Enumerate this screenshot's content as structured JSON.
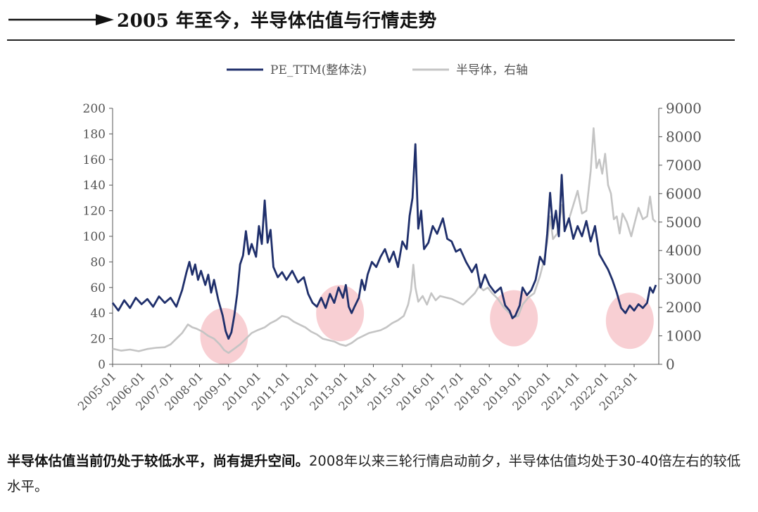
{
  "header": {
    "title": "2005 年至今，半导体估值与行情走势"
  },
  "caption": {
    "bold": "半导体估值当前仍处于较低水平，尚有提升空间。",
    "text": "2008年以来三轮行情启动前夕，半导体估值均处于30-40倍左右的较低水平。"
  },
  "chart_data": {
    "type": "line",
    "title": "2005 年至今，半导体估值与行情走势",
    "legend_position": "top-center",
    "x_tick_labels": [
      "2005-01",
      "2006-01",
      "2007-01",
      "2008-01",
      "2009-01",
      "2010-01",
      "2011-01",
      "2012-01",
      "2013-01",
      "2014-01",
      "2015-01",
      "2016-01",
      "2017-01",
      "2018-01",
      "2019-01",
      "2020-01",
      "2021-01",
      "2022-01",
      "2023-01"
    ],
    "y_left": {
      "label": "",
      "ylim": [
        0,
        200
      ],
      "ticks": [
        0,
        20,
        40,
        60,
        80,
        100,
        120,
        140,
        160,
        180,
        200
      ]
    },
    "y_right": {
      "label": "",
      "ylim": [
        0,
        9000
      ],
      "ticks": [
        0,
        1000,
        2000,
        3000,
        4000,
        5000,
        6000,
        7000,
        8000,
        9000
      ]
    },
    "series": [
      {
        "name": "PE_TTM(整体法)",
        "axis": "left",
        "color": "#1f2f6b",
        "points": [
          [
            2005.0,
            48
          ],
          [
            2005.2,
            42
          ],
          [
            2005.4,
            50
          ],
          [
            2005.6,
            44
          ],
          [
            2005.8,
            52
          ],
          [
            2006.0,
            47
          ],
          [
            2006.2,
            51
          ],
          [
            2006.4,
            45
          ],
          [
            2006.6,
            53
          ],
          [
            2006.8,
            48
          ],
          [
            2007.0,
            52
          ],
          [
            2007.2,
            45
          ],
          [
            2007.4,
            58
          ],
          [
            2007.55,
            72
          ],
          [
            2007.65,
            80
          ],
          [
            2007.75,
            70
          ],
          [
            2007.85,
            78
          ],
          [
            2007.95,
            66
          ],
          [
            2008.05,
            73
          ],
          [
            2008.2,
            62
          ],
          [
            2008.3,
            70
          ],
          [
            2008.4,
            56
          ],
          [
            2008.5,
            66
          ],
          [
            2008.65,
            50
          ],
          [
            2008.8,
            38
          ],
          [
            2008.9,
            26
          ],
          [
            2009.0,
            20
          ],
          [
            2009.1,
            25
          ],
          [
            2009.2,
            38
          ],
          [
            2009.3,
            55
          ],
          [
            2009.4,
            78
          ],
          [
            2009.5,
            85
          ],
          [
            2009.6,
            104
          ],
          [
            2009.7,
            86
          ],
          [
            2009.8,
            94
          ],
          [
            2009.95,
            84
          ],
          [
            2010.05,
            108
          ],
          [
            2010.15,
            94
          ],
          [
            2010.25,
            128
          ],
          [
            2010.35,
            95
          ],
          [
            2010.45,
            105
          ],
          [
            2010.55,
            76
          ],
          [
            2010.7,
            68
          ],
          [
            2010.85,
            72
          ],
          [
            2011.0,
            66
          ],
          [
            2011.2,
            73
          ],
          [
            2011.4,
            64
          ],
          [
            2011.6,
            68
          ],
          [
            2011.75,
            55
          ],
          [
            2011.9,
            48
          ],
          [
            2012.05,
            45
          ],
          [
            2012.2,
            52
          ],
          [
            2012.35,
            44
          ],
          [
            2012.5,
            55
          ],
          [
            2012.65,
            48
          ],
          [
            2012.8,
            60
          ],
          [
            2012.95,
            52
          ],
          [
            2013.05,
            62
          ],
          [
            2013.15,
            45
          ],
          [
            2013.25,
            40
          ],
          [
            2013.35,
            45
          ],
          [
            2013.5,
            52
          ],
          [
            2013.6,
            66
          ],
          [
            2013.7,
            58
          ],
          [
            2013.8,
            70
          ],
          [
            2013.95,
            80
          ],
          [
            2014.1,
            76
          ],
          [
            2014.25,
            84
          ],
          [
            2014.4,
            90
          ],
          [
            2014.55,
            80
          ],
          [
            2014.7,
            88
          ],
          [
            2014.85,
            76
          ],
          [
            2015.0,
            96
          ],
          [
            2015.15,
            90
          ],
          [
            2015.25,
            116
          ],
          [
            2015.35,
            130
          ],
          [
            2015.45,
            172
          ],
          [
            2015.55,
            106
          ],
          [
            2015.65,
            120
          ],
          [
            2015.75,
            90
          ],
          [
            2015.9,
            95
          ],
          [
            2016.05,
            108
          ],
          [
            2016.2,
            102
          ],
          [
            2016.4,
            114
          ],
          [
            2016.55,
            98
          ],
          [
            2016.7,
            96
          ],
          [
            2016.85,
            88
          ],
          [
            2017.0,
            90
          ],
          [
            2017.2,
            80
          ],
          [
            2017.4,
            72
          ],
          [
            2017.55,
            78
          ],
          [
            2017.7,
            60
          ],
          [
            2017.85,
            70
          ],
          [
            2018.0,
            62
          ],
          [
            2018.2,
            56
          ],
          [
            2018.4,
            60
          ],
          [
            2018.55,
            46
          ],
          [
            2018.7,
            42
          ],
          [
            2018.8,
            36
          ],
          [
            2018.9,
            38
          ],
          [
            2019.05,
            46
          ],
          [
            2019.15,
            60
          ],
          [
            2019.3,
            54
          ],
          [
            2019.45,
            58
          ],
          [
            2019.6,
            66
          ],
          [
            2019.75,
            84
          ],
          [
            2019.9,
            78
          ],
          [
            2020.0,
            102
          ],
          [
            2020.1,
            134
          ],
          [
            2020.2,
            106
          ],
          [
            2020.3,
            120
          ],
          [
            2020.4,
            100
          ],
          [
            2020.5,
            148
          ],
          [
            2020.6,
            104
          ],
          [
            2020.75,
            114
          ],
          [
            2020.9,
            98
          ],
          [
            2021.05,
            108
          ],
          [
            2021.2,
            100
          ],
          [
            2021.35,
            112
          ],
          [
            2021.5,
            96
          ],
          [
            2021.65,
            108
          ],
          [
            2021.8,
            86
          ],
          [
            2021.95,
            80
          ],
          [
            2022.1,
            74
          ],
          [
            2022.25,
            66
          ],
          [
            2022.4,
            56
          ],
          [
            2022.55,
            44
          ],
          [
            2022.7,
            40
          ],
          [
            2022.85,
            46
          ],
          [
            2023.0,
            42
          ],
          [
            2023.15,
            47
          ],
          [
            2023.3,
            44
          ],
          [
            2023.45,
            48
          ],
          [
            2023.55,
            60
          ],
          [
            2023.65,
            56
          ],
          [
            2023.75,
            62
          ]
        ]
      },
      {
        "name": "半导体，右轴",
        "axis": "right",
        "color": "#c4c4c4",
        "points": [
          [
            2005.0,
            550
          ],
          [
            2005.3,
            480
          ],
          [
            2005.6,
            520
          ],
          [
            2005.9,
            460
          ],
          [
            2006.2,
            540
          ],
          [
            2006.5,
            580
          ],
          [
            2006.8,
            600
          ],
          [
            2007.0,
            700
          ],
          [
            2007.2,
            900
          ],
          [
            2007.4,
            1100
          ],
          [
            2007.6,
            1400
          ],
          [
            2007.75,
            1300
          ],
          [
            2007.9,
            1250
          ],
          [
            2008.1,
            1150
          ],
          [
            2008.3,
            1000
          ],
          [
            2008.5,
            900
          ],
          [
            2008.7,
            700
          ],
          [
            2008.85,
            500
          ],
          [
            2009.0,
            400
          ],
          [
            2009.2,
            550
          ],
          [
            2009.4,
            700
          ],
          [
            2009.6,
            900
          ],
          [
            2009.8,
            1100
          ],
          [
            2010.0,
            1200
          ],
          [
            2010.25,
            1300
          ],
          [
            2010.45,
            1450
          ],
          [
            2010.65,
            1550
          ],
          [
            2010.85,
            1700
          ],
          [
            2011.05,
            1650
          ],
          [
            2011.25,
            1500
          ],
          [
            2011.45,
            1400
          ],
          [
            2011.65,
            1300
          ],
          [
            2011.85,
            1150
          ],
          [
            2012.05,
            1050
          ],
          [
            2012.25,
            900
          ],
          [
            2012.45,
            850
          ],
          [
            2012.65,
            800
          ],
          [
            2012.85,
            700
          ],
          [
            2013.05,
            650
          ],
          [
            2013.25,
            750
          ],
          [
            2013.45,
            900
          ],
          [
            2013.65,
            1000
          ],
          [
            2013.85,
            1100
          ],
          [
            2014.05,
            1150
          ],
          [
            2014.25,
            1200
          ],
          [
            2014.45,
            1300
          ],
          [
            2014.65,
            1450
          ],
          [
            2014.85,
            1550
          ],
          [
            2015.05,
            1700
          ],
          [
            2015.2,
            2100
          ],
          [
            2015.3,
            2600
          ],
          [
            2015.38,
            3500
          ],
          [
            2015.45,
            2700
          ],
          [
            2015.55,
            2200
          ],
          [
            2015.7,
            2400
          ],
          [
            2015.85,
            2100
          ],
          [
            2016.0,
            2500
          ],
          [
            2016.15,
            2250
          ],
          [
            2016.3,
            2400
          ],
          [
            2016.5,
            2350
          ],
          [
            2016.7,
            2300
          ],
          [
            2016.9,
            2200
          ],
          [
            2017.1,
            2100
          ],
          [
            2017.3,
            2300
          ],
          [
            2017.5,
            2500
          ],
          [
            2017.65,
            2750
          ],
          [
            2017.8,
            2600
          ],
          [
            2017.95,
            2700
          ],
          [
            2018.1,
            2500
          ],
          [
            2018.3,
            2300
          ],
          [
            2018.5,
            2000
          ],
          [
            2018.7,
            1800
          ],
          [
            2018.85,
            1650
          ],
          [
            2019.0,
            1700
          ],
          [
            2019.15,
            2100
          ],
          [
            2019.35,
            2350
          ],
          [
            2019.55,
            2500
          ],
          [
            2019.75,
            3100
          ],
          [
            2019.9,
            3700
          ],
          [
            2020.0,
            4300
          ],
          [
            2020.1,
            5200
          ],
          [
            2020.2,
            4400
          ],
          [
            2020.35,
            4600
          ],
          [
            2020.5,
            5600
          ],
          [
            2020.6,
            4700
          ],
          [
            2020.75,
            5100
          ],
          [
            2020.9,
            5600
          ],
          [
            2021.05,
            6100
          ],
          [
            2021.2,
            5300
          ],
          [
            2021.35,
            5400
          ],
          [
            2021.5,
            6800
          ],
          [
            2021.6,
            8300
          ],
          [
            2021.7,
            6900
          ],
          [
            2021.8,
            7200
          ],
          [
            2021.9,
            6700
          ],
          [
            2022.0,
            7400
          ],
          [
            2022.1,
            6300
          ],
          [
            2022.2,
            6000
          ],
          [
            2022.3,
            5100
          ],
          [
            2022.4,
            5200
          ],
          [
            2022.5,
            4600
          ],
          [
            2022.6,
            5300
          ],
          [
            2022.75,
            5000
          ],
          [
            2022.9,
            4500
          ],
          [
            2023.0,
            4900
          ],
          [
            2023.15,
            5500
          ],
          [
            2023.3,
            5100
          ],
          [
            2023.45,
            5200
          ],
          [
            2023.55,
            5900
          ],
          [
            2023.65,
            5100
          ],
          [
            2023.75,
            5000
          ]
        ]
      }
    ],
    "annotations": [
      {
        "type": "highlight-circle",
        "x": 2008.85,
        "y": 22,
        "color": "#f4b6bb"
      },
      {
        "type": "highlight-circle",
        "x": 2012.85,
        "y": 40,
        "color": "#f4b6bb"
      },
      {
        "type": "highlight-circle",
        "x": 2018.85,
        "y": 36,
        "color": "#f4b6bb"
      },
      {
        "type": "highlight-circle",
        "x": 2022.85,
        "y": 34,
        "color": "#f4b6bb"
      }
    ]
  }
}
